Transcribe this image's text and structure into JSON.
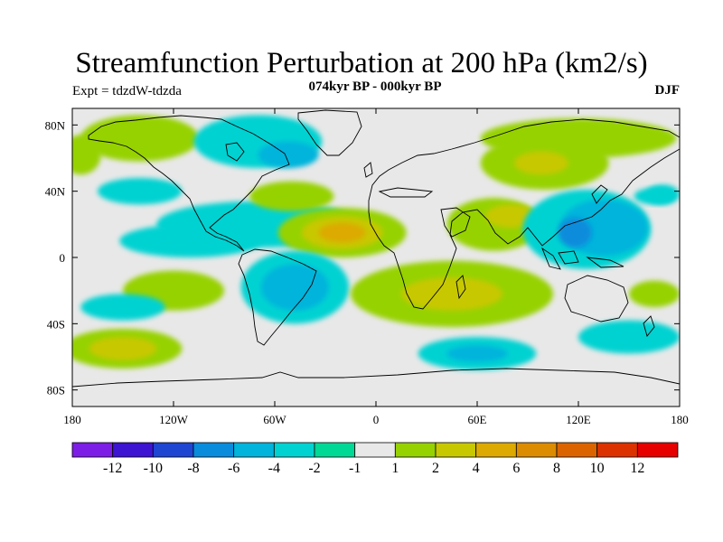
{
  "header": {
    "title": "Streamfunction Perturbation at 200 hPa (km2/s)",
    "subtitle": "074kyr BP - 000kyr BP",
    "experiment": "Expt = tdzdW-tdzda",
    "season": "DJF"
  },
  "map": {
    "projection": "cylindrical-equidistant",
    "lon_range": [
      -180,
      180
    ],
    "lat_range": [
      -90,
      90
    ],
    "x_ticks": [
      {
        "lon": -180,
        "label": "180"
      },
      {
        "lon": -120,
        "label": "120W"
      },
      {
        "lon": -60,
        "label": "60W"
      },
      {
        "lon": 0,
        "label": "0"
      },
      {
        "lon": 60,
        "label": "60E"
      },
      {
        "lon": 120,
        "label": "120E"
      },
      {
        "lon": 180,
        "label": "180"
      }
    ],
    "y_ticks": [
      {
        "lat": 80,
        "label": "80N"
      },
      {
        "lat": 40,
        "label": "40N"
      },
      {
        "lat": 0,
        "label": "0"
      },
      {
        "lat": -40,
        "label": "40S"
      },
      {
        "lat": -80,
        "label": "80S"
      }
    ],
    "background_color": "#e8e8e8",
    "coast_color": "#000000"
  },
  "colorbar": {
    "colors": [
      "#7d1ee6",
      "#3c14d2",
      "#1e46d2",
      "#0a8cdc",
      "#00b4dc",
      "#00d2d2",
      "#00d896",
      "#e8e8e8",
      "#96d200",
      "#c8c800",
      "#dcaa00",
      "#dc8c00",
      "#dc6400",
      "#dc3200",
      "#e60000"
    ],
    "labels": [
      "-12",
      "-10",
      "-8",
      "-6",
      "-4",
      "-2",
      "-1",
      "1",
      "2",
      "4",
      "6",
      "8",
      "10",
      "12"
    ]
  },
  "field_blobs": [
    {
      "lon": -140,
      "lat": 72,
      "rx": 35,
      "ry": 14,
      "level": 2
    },
    {
      "lon": -175,
      "lat": 62,
      "rx": 12,
      "ry": 12,
      "level": 2
    },
    {
      "lon": -70,
      "lat": 70,
      "rx": 38,
      "ry": 16,
      "level": -2
    },
    {
      "lon": -52,
      "lat": 62,
      "rx": 18,
      "ry": 8,
      "level": -4
    },
    {
      "lon": 120,
      "lat": 72,
      "rx": 58,
      "ry": 12,
      "level": 2
    },
    {
      "lon": 100,
      "lat": 57,
      "rx": 38,
      "ry": 16,
      "level": 2
    },
    {
      "lon": 98,
      "lat": 57,
      "rx": 16,
      "ry": 7,
      "level": 4
    },
    {
      "lon": -140,
      "lat": 40,
      "rx": 25,
      "ry": 8,
      "level": -2
    },
    {
      "lon": 170,
      "lat": 38,
      "rx": 10,
      "ry": 6,
      "level": -2
    },
    {
      "lon": -70,
      "lat": 20,
      "rx": 60,
      "ry": 14,
      "level": -2
    },
    {
      "lon": -110,
      "lat": 10,
      "rx": 42,
      "ry": 10,
      "level": -2
    },
    {
      "lon": -20,
      "lat": 15,
      "rx": 38,
      "ry": 15,
      "level": 2
    },
    {
      "lon": -20,
      "lat": 15,
      "rx": 24,
      "ry": 10,
      "level": 4
    },
    {
      "lon": -20,
      "lat": 15,
      "rx": 14,
      "ry": 6,
      "level": 6
    },
    {
      "lon": -50,
      "lat": 37,
      "rx": 25,
      "ry": 9,
      "level": 2
    },
    {
      "lon": 70,
      "lat": 20,
      "rx": 28,
      "ry": 16,
      "level": 2
    },
    {
      "lon": 80,
      "lat": 25,
      "rx": 15,
      "ry": 7,
      "level": 4
    },
    {
      "lon": 125,
      "lat": 17,
      "rx": 38,
      "ry": 24,
      "level": -2
    },
    {
      "lon": 135,
      "lat": 18,
      "rx": 26,
      "ry": 17,
      "level": -4
    },
    {
      "lon": 118,
      "lat": 15,
      "rx": 10,
      "ry": 9,
      "level": -6
    },
    {
      "lon": 165,
      "lat": 37,
      "rx": 12,
      "ry": 5,
      "level": -2
    },
    {
      "lon": -48,
      "lat": -18,
      "rx": 32,
      "ry": 22,
      "level": -2
    },
    {
      "lon": -48,
      "lat": -18,
      "rx": 20,
      "ry": 14,
      "level": -4
    },
    {
      "lon": -120,
      "lat": -20,
      "rx": 30,
      "ry": 12,
      "level": 2
    },
    {
      "lon": -150,
      "lat": -30,
      "rx": 25,
      "ry": 8,
      "level": -2
    },
    {
      "lon": 45,
      "lat": -22,
      "rx": 60,
      "ry": 20,
      "level": 2
    },
    {
      "lon": 45,
      "lat": -22,
      "rx": 30,
      "ry": 10,
      "level": 4
    },
    {
      "lon": 165,
      "lat": -22,
      "rx": 15,
      "ry": 8,
      "level": 2
    },
    {
      "lon": -150,
      "lat": -55,
      "rx": 35,
      "ry": 12,
      "level": 2
    },
    {
      "lon": -150,
      "lat": -55,
      "rx": 20,
      "ry": 7,
      "level": 4
    },
    {
      "lon": 60,
      "lat": -58,
      "rx": 35,
      "ry": 10,
      "level": -2
    },
    {
      "lon": 60,
      "lat": -58,
      "rx": 18,
      "ry": 5,
      "level": -4
    },
    {
      "lon": 150,
      "lat": -48,
      "rx": 30,
      "ry": 10,
      "level": -2
    }
  ]
}
